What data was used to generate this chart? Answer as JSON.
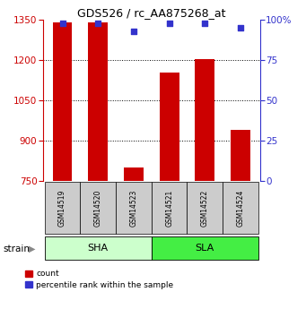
{
  "title": "GDS526 / rc_AA875268_at",
  "samples": [
    "GSM14519",
    "GSM14520",
    "GSM14523",
    "GSM14521",
    "GSM14522",
    "GSM14524"
  ],
  "counts": [
    1340,
    1340,
    800,
    1155,
    1205,
    940
  ],
  "percentile_ranks": [
    98,
    98,
    93,
    98,
    98,
    95
  ],
  "ylim_left": [
    750,
    1350
  ],
  "ylim_right": [
    0,
    100
  ],
  "yticks_left": [
    750,
    900,
    1050,
    1200,
    1350
  ],
  "yticks_right": [
    0,
    25,
    50,
    75,
    100
  ],
  "bar_color": "#cc0000",
  "dot_color": "#3333cc",
  "sha_color": "#ccffcc",
  "sla_color": "#44ee44",
  "sample_box_color": "#cccccc",
  "left_axis_color": "#cc0000",
  "right_axis_color": "#3333cc"
}
